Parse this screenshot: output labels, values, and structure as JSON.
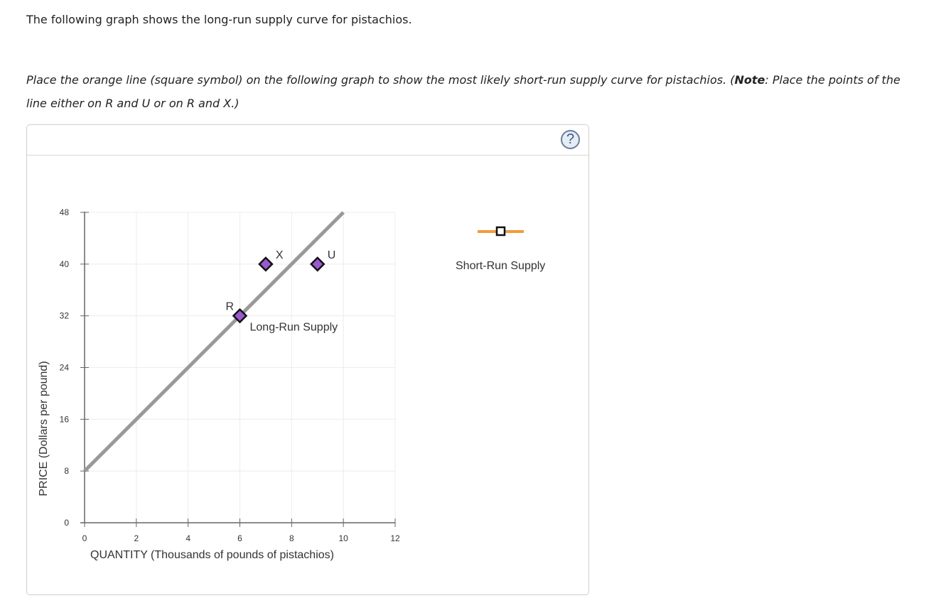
{
  "intro_text": "The following graph shows the long-run supply curve for pistachios.",
  "instruction": {
    "part1": "Place the orange line (square symbol) on the following graph to show the most likely short-run supply curve for pistachios. (",
    "note_label": "Note",
    "part2": ": Place the points of the line either on R and U or on R and X.)"
  },
  "panel": {
    "help_icon": "?"
  },
  "legend": {
    "tool_label": "Short-Run Supply",
    "tool_color": "#f29b3a",
    "tool_symbol": "square"
  },
  "chart_data": {
    "type": "line",
    "title": "",
    "xlabel": "QUANTITY (Thousands of pounds of pistachios)",
    "ylabel": "PRICE (Dollars per pound)",
    "xlim": [
      0,
      12
    ],
    "ylim": [
      0,
      48
    ],
    "x_ticks": [
      "0",
      "2",
      "4",
      "6",
      "8",
      "10",
      "12"
    ],
    "y_ticks": [
      "0",
      "8",
      "16",
      "24",
      "32",
      "40",
      "48"
    ],
    "grid": true,
    "series": [
      {
        "name": "Long-Run Supply",
        "color": "#999999",
        "points": [
          [
            0,
            8
          ],
          [
            10,
            48
          ]
        ]
      }
    ],
    "points": [
      {
        "label": "R",
        "x": 6,
        "y": 32,
        "color": "#9b59d0"
      },
      {
        "label": "X",
        "x": 7,
        "y": 40,
        "color": "#9b59d0"
      },
      {
        "label": "U",
        "x": 9,
        "y": 40,
        "color": "#9b59d0"
      }
    ],
    "annotations": [
      "Long-Run Supply"
    ]
  }
}
